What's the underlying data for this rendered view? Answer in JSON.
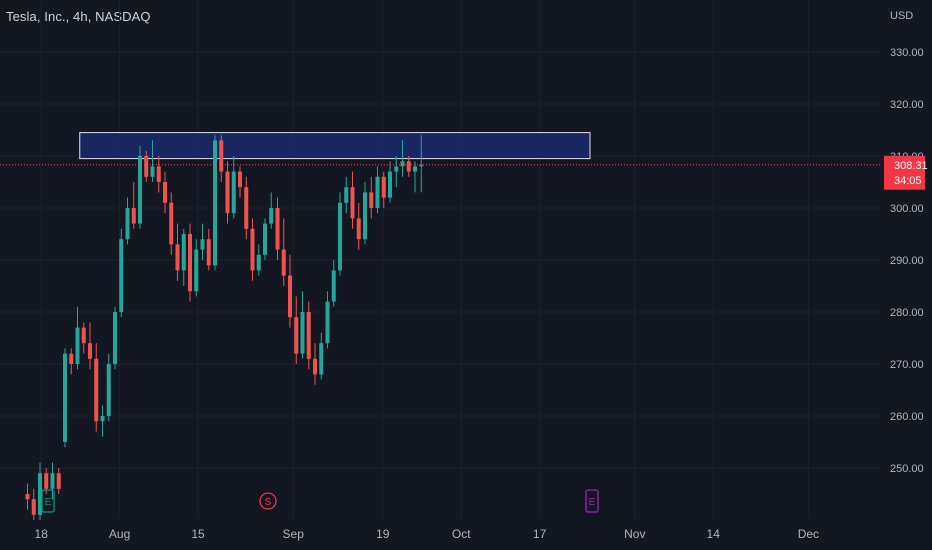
{
  "header": {
    "title": "Tesla, Inc., 4h, NASDAQ",
    "currency": "USD"
  },
  "price_tag": {
    "price": "308.31",
    "countdown": "34:05"
  },
  "events": [
    {
      "label": "E",
      "type": "earnings",
      "date": "Jul 20",
      "color": "#089981"
    },
    {
      "label": "S",
      "type": "split",
      "date": "Aug 25",
      "color": "#f23645"
    },
    {
      "label": "E",
      "type": "earnings",
      "date": "Oct 19",
      "color": "#9c27b0"
    }
  ],
  "colors": {
    "background": "#131722",
    "up": "#26a69a",
    "down": "#ef5350",
    "zone": "#1a2a6c",
    "zone_border": "#e0e3eb"
  },
  "chart_data": {
    "type": "candlestick",
    "title": "Tesla, Inc., 4h, NASDAQ",
    "y_unit": "USD",
    "ylim": [
      240.5,
      337
    ],
    "xlim": [
      "Jul 16",
      "Dec 6"
    ],
    "y_ticks": [
      "250.00",
      "260.00",
      "270.00",
      "280.00",
      "290.00",
      "300.00",
      "310.00",
      "320.00",
      "330.00"
    ],
    "x_ticks": [
      "18",
      "Aug",
      "15",
      "Sep",
      "19",
      "Oct",
      "17",
      "Nov",
      "14",
      "Dec"
    ],
    "x_tick_positions": [
      2,
      16,
      30,
      47,
      63,
      77,
      91,
      108,
      122,
      139
    ],
    "last_price": 308.31,
    "zone": {
      "low": 309.5,
      "high": 314.5,
      "from_index": 9,
      "to_index": 90
    },
    "candles": [
      [
        245,
        247,
        242,
        244
      ],
      [
        244,
        246,
        240,
        241
      ],
      [
        241,
        251,
        240,
        249
      ],
      [
        249,
        250,
        245,
        246
      ],
      [
        246,
        251,
        244,
        249
      ],
      [
        249,
        250,
        245,
        246
      ],
      [
        255,
        273,
        254,
        272
      ],
      [
        272,
        273,
        268,
        270
      ],
      [
        270,
        281,
        269,
        277
      ],
      [
        277,
        278,
        272,
        274
      ],
      [
        274,
        278,
        269,
        271
      ],
      [
        271,
        274,
        257,
        259
      ],
      [
        259,
        262,
        256,
        260
      ],
      [
        260,
        272,
        259,
        270
      ],
      [
        270,
        281,
        269,
        280
      ],
      [
        280,
        296,
        279,
        294
      ],
      [
        294,
        302,
        293,
        300
      ],
      [
        300,
        305,
        296,
        297
      ],
      [
        297,
        312,
        296,
        310
      ],
      [
        310,
        311,
        305,
        306
      ],
      [
        306,
        313,
        305,
        308
      ],
      [
        308,
        310,
        303,
        305
      ],
      [
        305,
        307,
        299,
        301
      ],
      [
        301,
        303,
        291,
        293
      ],
      [
        293,
        297,
        286,
        288
      ],
      [
        288,
        296,
        285,
        295
      ],
      [
        295,
        297,
        282,
        284
      ],
      [
        284,
        294,
        283,
        292
      ],
      [
        292,
        297,
        290,
        294
      ],
      [
        294,
        296,
        288,
        289
      ],
      [
        289,
        314,
        288,
        313
      ],
      [
        313,
        314,
        305,
        307
      ],
      [
        307,
        309,
        297,
        299
      ],
      [
        299,
        310,
        298,
        307
      ],
      [
        307,
        308,
        302,
        304
      ],
      [
        304,
        306,
        294,
        296
      ],
      [
        296,
        298,
        286,
        288
      ],
      [
        288,
        293,
        287,
        291
      ],
      [
        291,
        298,
        290,
        297
      ],
      [
        297,
        303,
        296,
        300
      ],
      [
        300,
        302,
        290,
        292
      ],
      [
        292,
        298,
        285,
        287
      ],
      [
        287,
        291,
        277,
        279
      ],
      [
        279,
        283,
        270,
        272
      ],
      [
        272,
        284,
        271,
        280
      ],
      [
        280,
        282,
        269,
        271
      ],
      [
        271,
        274,
        266,
        268
      ],
      [
        268,
        276,
        267,
        274
      ],
      [
        274,
        284,
        273,
        282
      ],
      [
        282,
        290,
        281,
        288
      ],
      [
        288,
        303,
        287,
        301
      ],
      [
        301,
        306,
        299,
        304
      ],
      [
        304,
        307,
        296,
        298
      ],
      [
        298,
        301,
        292,
        294
      ],
      [
        294,
        305,
        293,
        303
      ],
      [
        303,
        306,
        298,
        300
      ],
      [
        300,
        308,
        299,
        306
      ],
      [
        306,
        307,
        300,
        302
      ],
      [
        302,
        309,
        301,
        307
      ],
      [
        307,
        310,
        304,
        308
      ],
      [
        308,
        313,
        306,
        309
      ],
      [
        309,
        310,
        306,
        307
      ],
      [
        307,
        309,
        303,
        308
      ],
      [
        308,
        314,
        303,
        308.31
      ]
    ]
  }
}
